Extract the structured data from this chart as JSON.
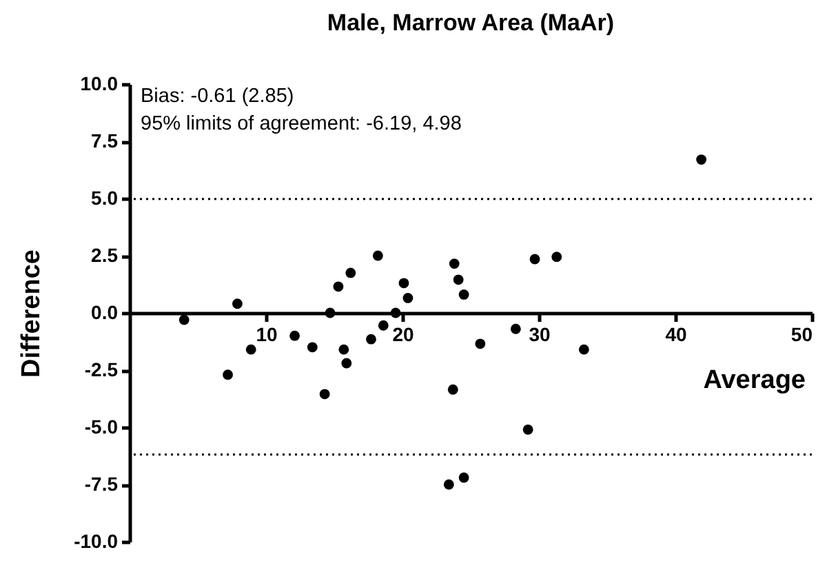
{
  "chart_data": {
    "type": "scatter",
    "title": "Male, Marrow Area (MaAr)",
    "xlabel": "Average",
    "ylabel": "Difference",
    "annotations": [
      "Bias: -0.61 (2.85)",
      "95% limits of agreement: -6.19, 4.98"
    ],
    "xlim": [
      0,
      50
    ],
    "xticks": [
      10,
      20,
      30,
      40,
      50
    ],
    "ylim": [
      -10,
      10
    ],
    "yticks": [
      {
        "value": -10,
        "label": "-10.0"
      },
      {
        "value": -7.5,
        "label": "-7.5"
      },
      {
        "value": -5,
        "label": "-5.0"
      },
      {
        "value": -2.5,
        "label": "-2.5"
      },
      {
        "value": 0,
        "label": "0.0"
      },
      {
        "value": 2.5,
        "label": "2.5"
      },
      {
        "value": 5,
        "label": "5.0"
      },
      {
        "value": 7.5,
        "label": "7.5"
      },
      {
        "value": 10,
        "label": "10.0"
      }
    ],
    "grid": false,
    "marker": "circle",
    "ref_lines": [
      {
        "axis": "y",
        "value": 4.98,
        "color": "#000000",
        "line_style": "dotted"
      },
      {
        "axis": "y",
        "value": -6.19,
        "color": "#000000",
        "line_style": "dotted"
      }
    ],
    "series": [
      {
        "color": "#000000",
        "x": [
          4.0,
          7.9,
          7.2,
          8.9,
          12.1,
          13.4,
          14.3,
          14.7,
          15.3,
          15.7,
          15.9,
          16.2,
          17.7,
          18.2,
          18.6,
          19.5,
          20.1,
          20.4,
          23.8,
          24.1,
          24.5,
          25.7,
          28.3,
          29.7,
          31.3,
          33.3,
          23.7,
          29.2,
          23.4,
          24.5,
          41.9
        ],
        "values": [
          -0.3,
          0.4,
          -2.7,
          -1.6,
          -1.0,
          -1.5,
          -3.55,
          0,
          1.15,
          -1.6,
          -2.2,
          1.75,
          -1.15,
          2.5,
          -0.55,
          0,
          1.3,
          0.65,
          2.15,
          1.45,
          0.8,
          -1.35,
          -0.7,
          2.35,
          2.45,
          -1.6,
          -3.35,
          -5.1,
          -7.5,
          -7.2,
          6.7
        ]
      }
    ]
  }
}
